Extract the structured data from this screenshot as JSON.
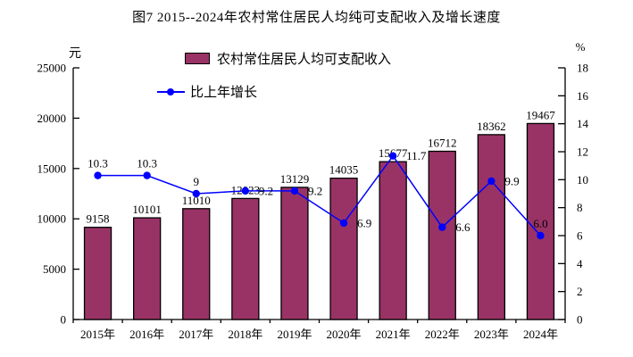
{
  "title": "图7 2015--2024年农村常住居民人均纯可支配收入及增长速度",
  "legend": {
    "bar_label": "农村常住居民人均可支配收入",
    "line_label": "比上年增长"
  },
  "axes": {
    "left_unit": "元",
    "right_unit": "%"
  },
  "colors": {
    "bar_fill": "#993366",
    "bar_border": "#000000",
    "line": "#0000ff",
    "axis": "#000000",
    "text": "#000000",
    "background": "#ffffff"
  },
  "chart_data": {
    "type": "bar+line",
    "title": "图7 2015--2024年农村常住居民人均纯可支配收入及增长速度",
    "categories": [
      "2015年",
      "2016年",
      "2017年",
      "2018年",
      "2019年",
      "2020年",
      "2021年",
      "2022年",
      "2023年",
      "2024年"
    ],
    "series": [
      {
        "name": "农村常住居民人均可支配收入",
        "type": "bar",
        "axis": "left",
        "values": [
          9158,
          10101,
          11010,
          12023,
          13129,
          14035,
          15677,
          16712,
          18362,
          19467
        ],
        "data_labels": [
          "9158",
          "10101",
          "11010",
          "12023",
          "13129",
          "14035",
          "15677",
          "16712",
          "18362",
          "19467"
        ]
      },
      {
        "name": "比上年增长",
        "type": "line",
        "axis": "right",
        "values": [
          10.3,
          10.3,
          9,
          9.2,
          9.2,
          6.9,
          11.7,
          6.6,
          9.9,
          6.0
        ],
        "data_labels": [
          "10.3",
          "10.3",
          "9",
          "9.2",
          "9.2",
          "6.9",
          "11.7",
          "6.6",
          "9.9",
          "6.0"
        ],
        "label_position": [
          "above",
          "above",
          "above",
          "right",
          "right",
          "right",
          "right",
          "right",
          "right",
          "above"
        ]
      }
    ],
    "left_axis": {
      "min": 0,
      "max": 25000,
      "step": 5000,
      "unit": "元"
    },
    "right_axis": {
      "min": 0,
      "max": 18,
      "step": 2,
      "unit": "%"
    },
    "grid": false,
    "legend_position": "top-inside"
  }
}
